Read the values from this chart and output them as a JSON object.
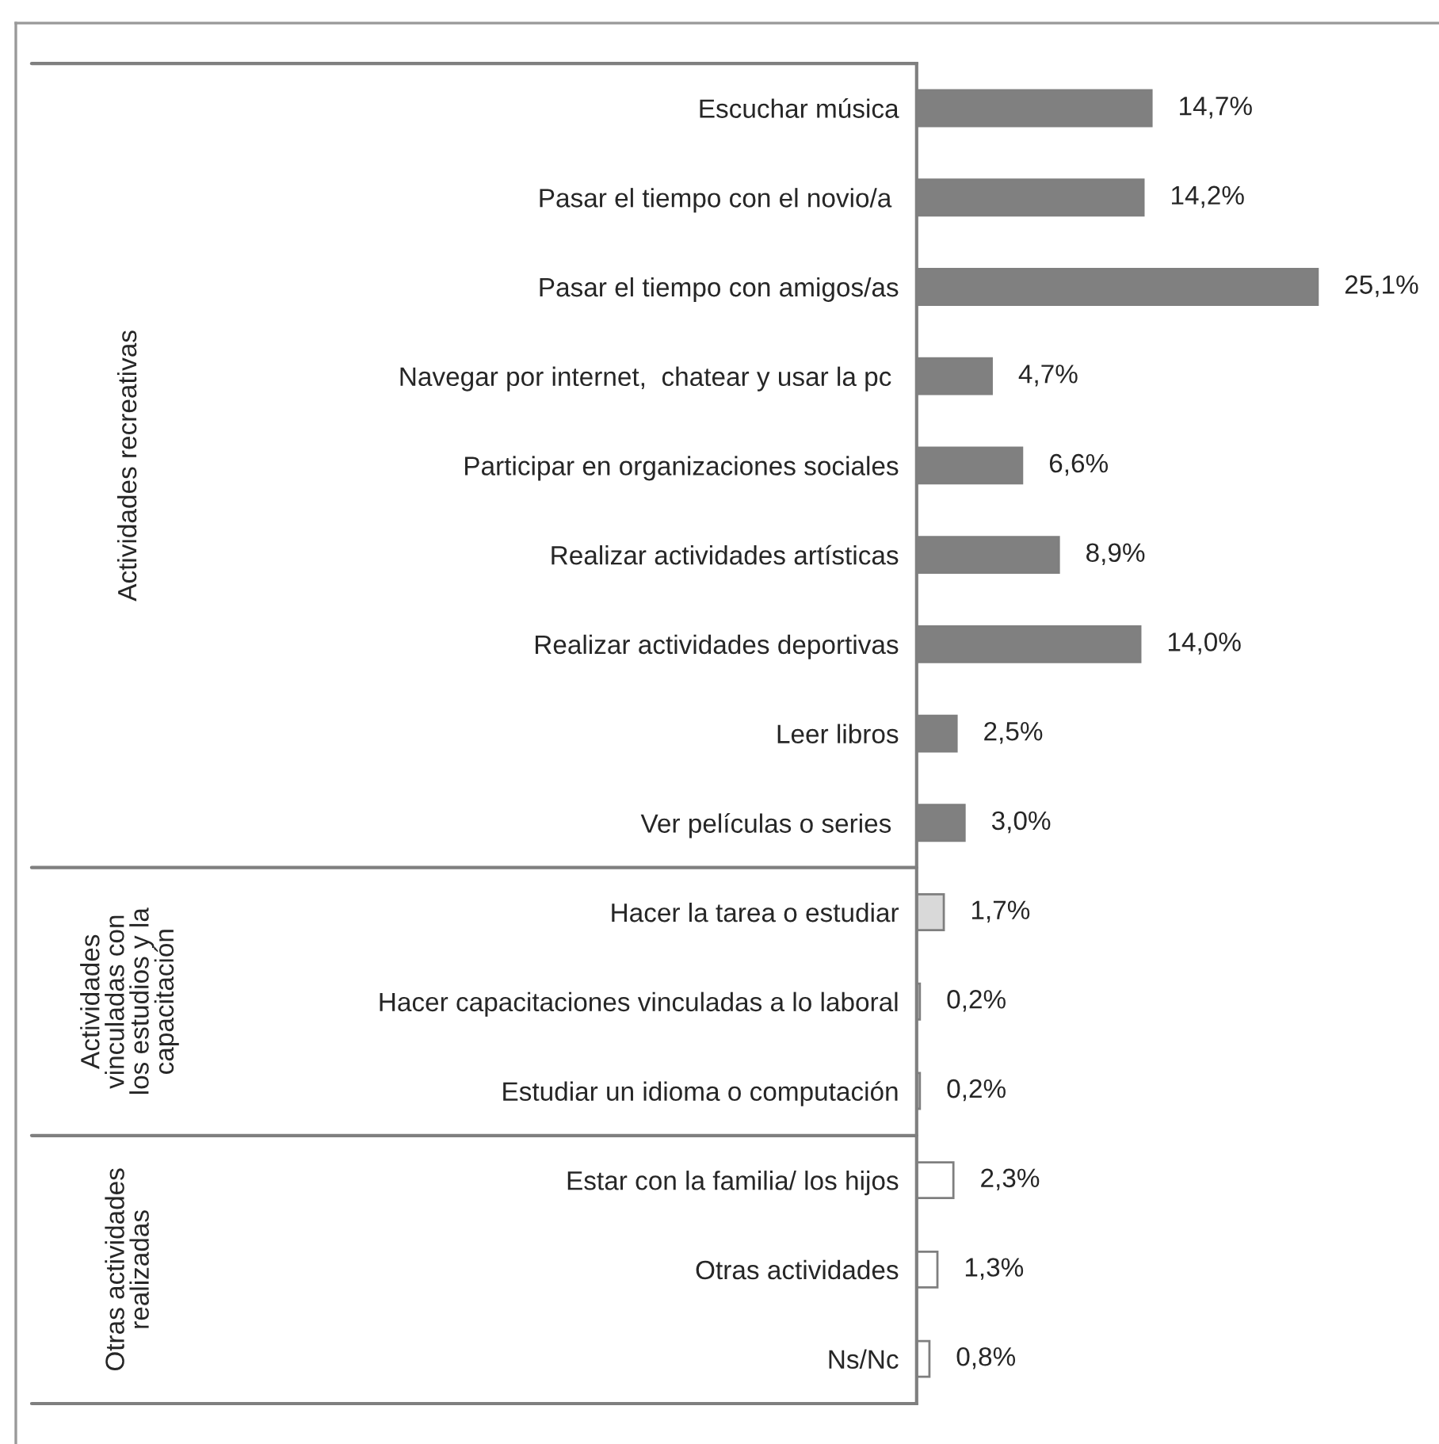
{
  "chart_data": {
    "type": "bar",
    "orientation": "horizontal",
    "categories": [
      "Escuchar música",
      "Pasar el tiempo con el novio/a ",
      "Pasar el tiempo con amigos/as",
      "Navegar por internet,  chatear y usar la pc ",
      "Participar en organizaciones sociales",
      "Realizar actividades artísticas",
      "Realizar actividades deportivas",
      "Leer libros",
      "Ver películas o series ",
      "Hacer la tarea o estudiar",
      "Hacer capacitaciones vinculadas a lo laboral",
      "Estudiar un idioma o computación",
      "Estar con la familia/ los hijos",
      "Otras actividades",
      "Ns/Nc"
    ],
    "values": [
      14.7,
      14.2,
      25.1,
      4.7,
      6.6,
      8.9,
      14.0,
      2.5,
      3.0,
      1.7,
      0.2,
      0.2,
      2.3,
      1.3,
      0.8
    ],
    "colors": [
      "#808080",
      "#808080",
      "#808080",
      "#808080",
      "#808080",
      "#808080",
      "#808080",
      "#808080",
      "#808080",
      "#d9d9d9",
      "#d9d9d9",
      "#d9d9d9",
      "#ffffff",
      "#ffffff",
      "#ffffff"
    ],
    "value_labels": [
      "14,7%",
      "14,2%",
      "25,1%",
      "4,7%",
      "6,6%",
      "8,9%",
      "14,0%",
      "2,5%",
      "3,0%",
      "1,7%",
      "0,2%",
      "0,2%",
      "2,3%",
      "1,3%",
      "0,8%"
    ],
    "annotations": [
      "Actividades recreativas",
      "Actividades\nvinculadas con\nlos estudios y la\ncapacitación",
      "Otras actividades\nrealizadas"
    ]
  }
}
